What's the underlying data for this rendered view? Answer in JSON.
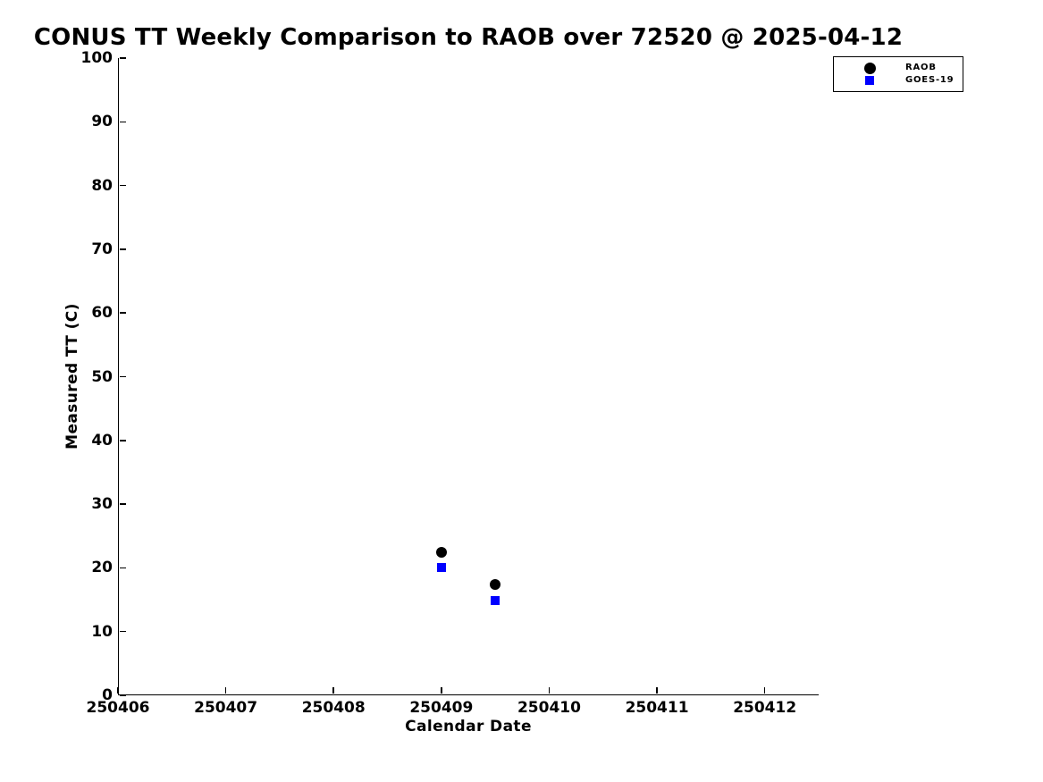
{
  "chart_data": {
    "type": "scatter",
    "title": "CONUS TT Weekly Comparison to RAOB over 72520 @ 2025-04-12",
    "xlabel": "Calendar Date",
    "ylabel": "Measured TT (C)",
    "xlim": [
      250406,
      250412.5
    ],
    "ylim": [
      0,
      100
    ],
    "xticks": [
      250406,
      250407,
      250408,
      250409,
      250410,
      250411,
      250412
    ],
    "yticks": [
      0,
      10,
      20,
      30,
      40,
      50,
      60,
      70,
      80,
      90,
      100
    ],
    "grid": false,
    "legend_position": "top-right",
    "series": [
      {
        "name": "RAOB",
        "marker": "circle",
        "color": "#000000",
        "x": [
          250409.0,
          250409.5
        ],
        "y": [
          22.5,
          17.4
        ]
      },
      {
        "name": "GOES-19",
        "marker": "square",
        "color": "#0000ff",
        "x": [
          250409.0,
          250409.5
        ],
        "y": [
          20.1,
          14.8
        ]
      }
    ]
  },
  "colors": {
    "background": "#ffffff",
    "axis": "#000000",
    "raob": "#000000",
    "goes19": "#0000ff"
  }
}
